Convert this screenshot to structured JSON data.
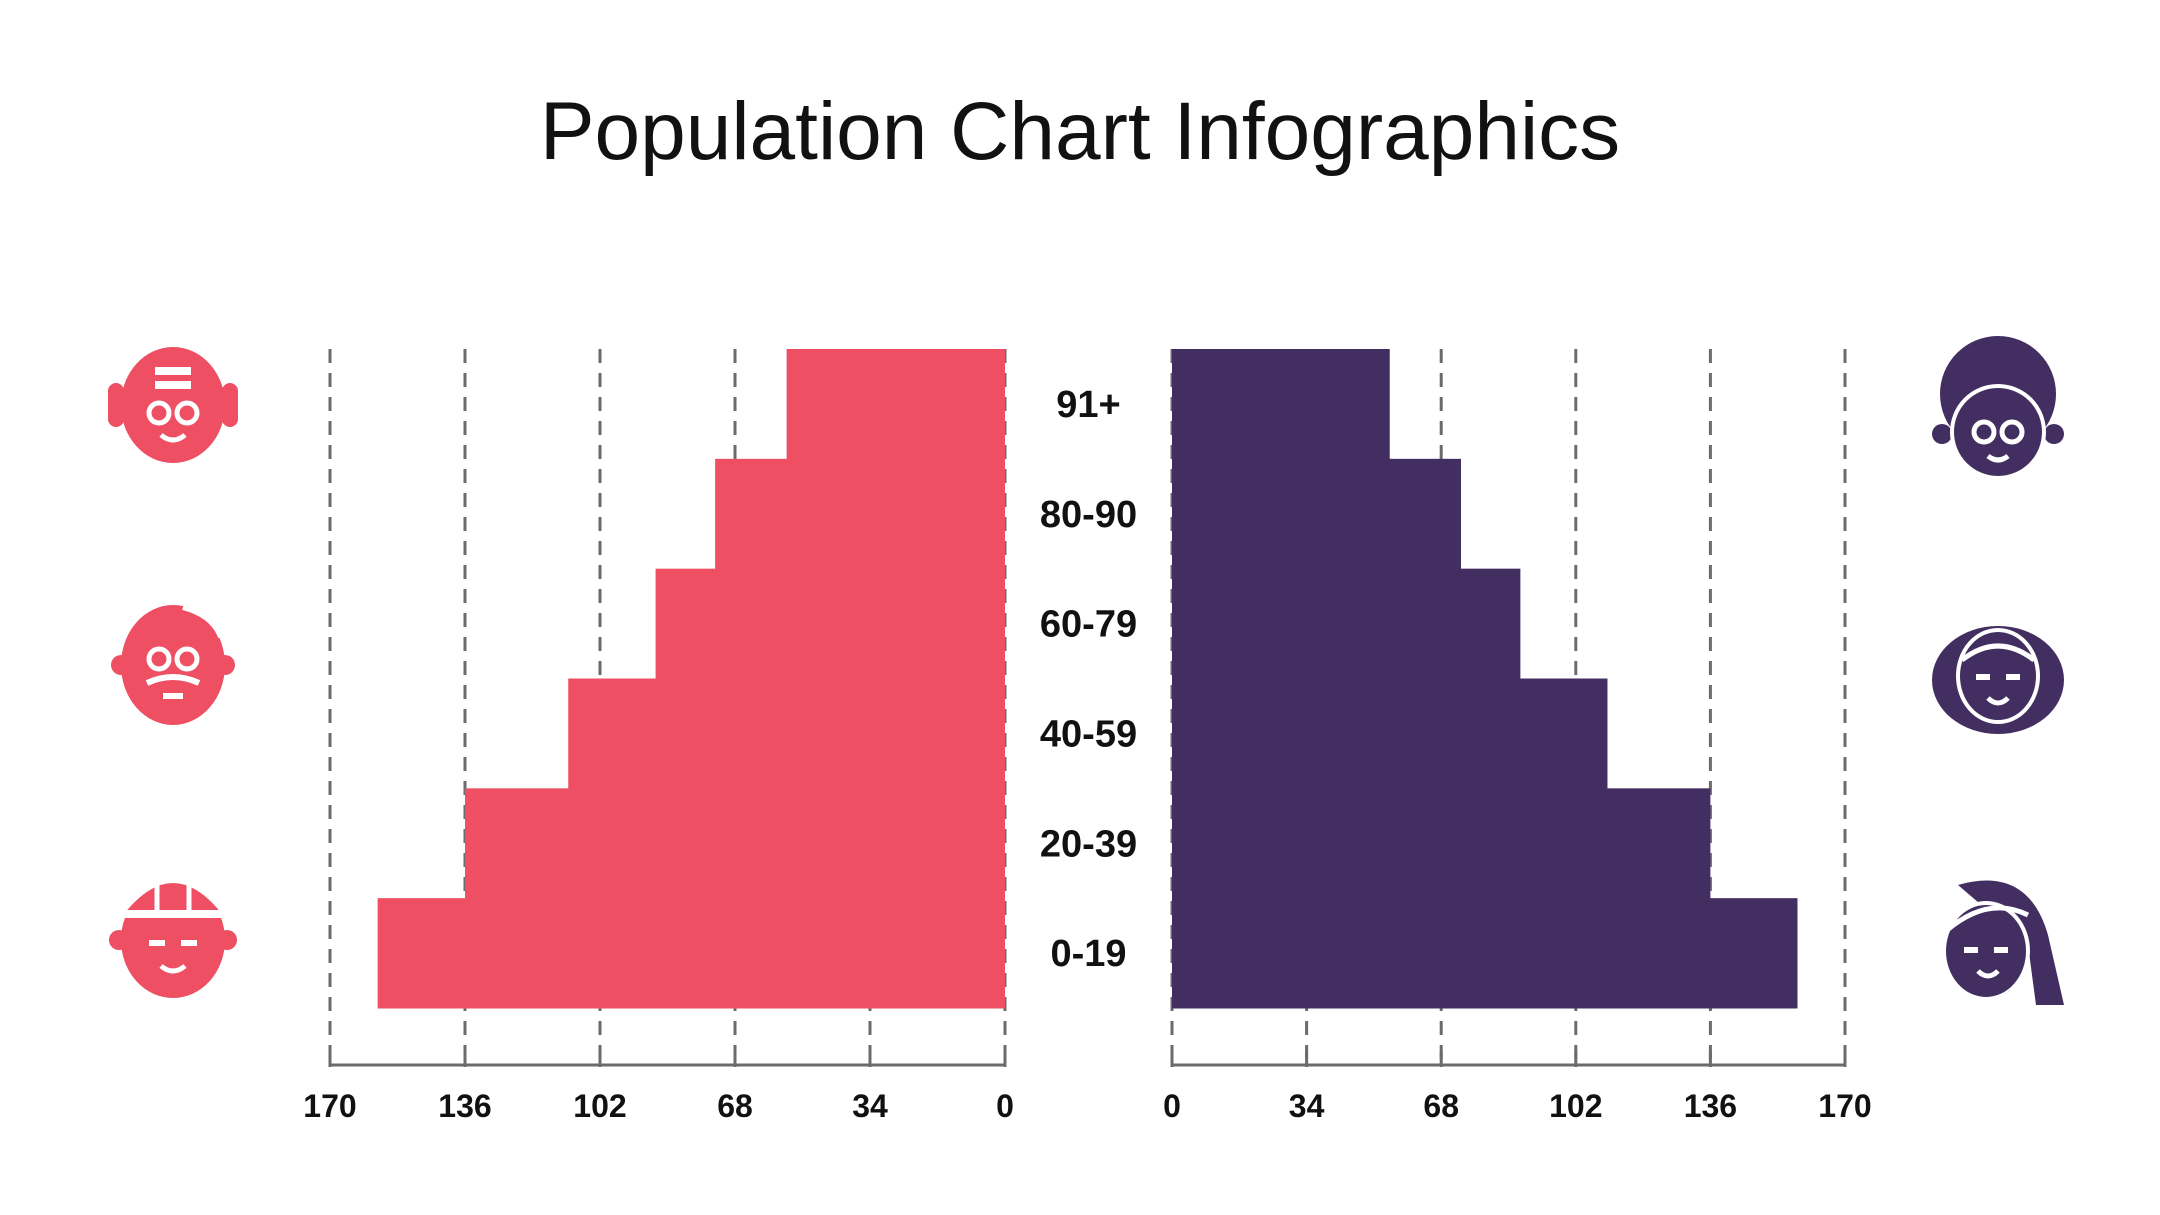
{
  "title": "Population Chart Infographics",
  "colors": {
    "male": "#ee4f63",
    "female": "#422e60",
    "grid": "#6b6b6b",
    "text": "#111111"
  },
  "chart_data": {
    "type": "bar",
    "subtype": "population-pyramid",
    "title": "Population Chart Infographics",
    "categories": [
      "91+",
      "80-90",
      "60-79",
      "40-59",
      "20-39",
      "0-19"
    ],
    "series": [
      {
        "name": "male",
        "side": "left",
        "color": "#ee4f63",
        "values": [
          55,
          73,
          88,
          110,
          136,
          158
        ]
      },
      {
        "name": "female",
        "side": "right",
        "color": "#422e60",
        "values": [
          55,
          73,
          88,
          110,
          136,
          158
        ]
      }
    ],
    "xlim": [
      0,
      170
    ],
    "left_ticks": [
      "170",
      "136",
      "102",
      "68",
      "34",
      "0"
    ],
    "right_ticks": [
      "0",
      "34",
      "68",
      "102",
      "136",
      "170"
    ],
    "grid": "dashed-vertical",
    "icons": {
      "left": [
        "elderly-man-icon",
        "bearded-man-icon",
        "worker-man-icon"
      ],
      "right": [
        "elderly-woman-icon",
        "woman-icon",
        "young-woman-icon"
      ]
    }
  }
}
